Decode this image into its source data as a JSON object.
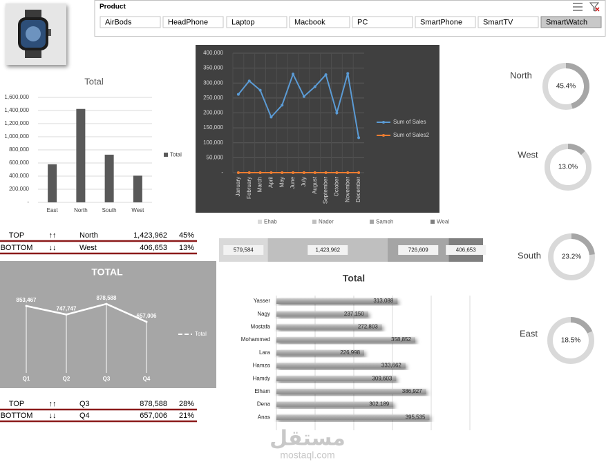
{
  "slicer": {
    "title": "Product",
    "items": [
      {
        "label": "AirBods",
        "selected": false
      },
      {
        "label": "HeadPhone",
        "selected": false
      },
      {
        "label": "Laptop",
        "selected": false
      },
      {
        "label": "Macbook",
        "selected": false
      },
      {
        "label": "PC",
        "selected": false
      },
      {
        "label": "SmartPhone",
        "selected": false
      },
      {
        "label": "SmartTV",
        "selected": false
      },
      {
        "label": "SmartWatch",
        "selected": true
      }
    ]
  },
  "chart_data": [
    {
      "type": "bar",
      "orientation": "vertical",
      "title": "Total",
      "categories": [
        "East",
        "North",
        "South",
        "West"
      ],
      "series": [
        {
          "name": "Total",
          "color": "#595959",
          "values": [
            579584,
            1423962,
            726609,
            406653
          ]
        }
      ],
      "ylim": [
        0,
        1600000
      ],
      "yticks": [
        {
          "value": 0,
          "label": "-"
        },
        {
          "value": 200000,
          "label": "200,000"
        },
        {
          "value": 400000,
          "label": "400,000"
        },
        {
          "value": 600000,
          "label": "600,000"
        },
        {
          "value": 800000,
          "label": "800,000"
        },
        {
          "value": 1000000,
          "label": "1,000,000"
        },
        {
          "value": 1200000,
          "label": "1,200,000"
        },
        {
          "value": 1400000,
          "label": "1,400,000"
        },
        {
          "value": 1600000,
          "label": "1,600,000"
        }
      ],
      "grid": true,
      "legend": "right"
    },
    {
      "type": "line",
      "categories": [
        "January",
        "February",
        "March",
        "April",
        "May",
        "June",
        "July",
        "August",
        "September",
        "October",
        "November",
        "December"
      ],
      "series": [
        {
          "name": "Sum of Sales",
          "color": "#5b9bd5",
          "values": [
            262000,
            307000,
            276000,
            186000,
            226000,
            330000,
            255000,
            288000,
            328000,
            200000,
            332000,
            117000
          ]
        },
        {
          "name": "Sum of Sales2",
          "color": "#ed7d31",
          "values": [
            0,
            0,
            0,
            0,
            0,
            0,
            0,
            0,
            0,
            0,
            0,
            0
          ]
        }
      ],
      "ylim": [
        0,
        400000
      ],
      "yticks": [
        {
          "value": 0,
          "label": "-"
        },
        {
          "value": 50000,
          "label": "50,000"
        },
        {
          "value": 100000,
          "label": "100,000"
        },
        {
          "value": 150000,
          "label": "150,000"
        },
        {
          "value": 200000,
          "label": "200,000"
        },
        {
          "value": 250000,
          "label": "250,000"
        },
        {
          "value": 300000,
          "label": "300,000"
        },
        {
          "value": 350000,
          "label": "350,000"
        },
        {
          "value": 400000,
          "label": "400,000"
        }
      ],
      "grid": true,
      "legend": "right"
    },
    {
      "type": "doughnut",
      "title": "North",
      "values": [
        45.4
      ],
      "value_labels": [
        "45.4%"
      ],
      "color": "#a6a6a6"
    },
    {
      "type": "doughnut",
      "title": "West",
      "values": [
        13.0
      ],
      "value_labels": [
        "13.0%"
      ],
      "color": "#a6a6a6"
    },
    {
      "type": "doughnut",
      "title": "South",
      "values": [
        23.2
      ],
      "value_labels": [
        "23.2%"
      ],
      "color": "#a6a6a6"
    },
    {
      "type": "doughnut",
      "title": "East",
      "values": [
        18.5
      ],
      "value_labels": [
        "18.5%"
      ],
      "color": "#a6a6a6"
    },
    {
      "type": "stacked_bar",
      "orientation": "horizontal",
      "legend": "top",
      "series": [
        {
          "name": "Ehab",
          "color": "#d9d9d9",
          "values": [
            579584
          ],
          "value_labels": [
            "579,584"
          ]
        },
        {
          "name": "Nader",
          "color": "#bfbfbf",
          "values": [
            1423962
          ],
          "value_labels": [
            "1,423,962"
          ]
        },
        {
          "name": "Sameh",
          "color": "#a5a5a5",
          "values": [
            726609
          ],
          "value_labels": [
            "726,609"
          ]
        },
        {
          "name": "Weal",
          "color": "#7f7f7f",
          "values": [
            406653
          ],
          "value_labels": [
            "406,653"
          ]
        }
      ]
    },
    {
      "type": "line",
      "title": "TOTAL",
      "categories": [
        "Q1",
        "Q2",
        "Q3",
        "Q4"
      ],
      "series": [
        {
          "name": "Total",
          "color": "#ffffff",
          "values": [
            853467,
            747747,
            878588,
            657006
          ],
          "value_labels": [
            "853,467",
            "747,747",
            "878,588",
            "657,006"
          ]
        }
      ],
      "ylim": [
        0,
        1400000
      ],
      "legend": "right"
    },
    {
      "type": "bar",
      "orientation": "horizontal",
      "title": "Total",
      "categories": [
        "Yasser",
        "Nagy",
        "Mostafa",
        "Mohammed",
        "Lara",
        "Hamza",
        "Hamdy",
        "Elham",
        "Dena",
        "Anas"
      ],
      "values": [
        313088,
        237150,
        272803,
        358852,
        226998,
        333662,
        309603,
        386927,
        302189,
        395535
      ],
      "value_labels": [
        "313,088",
        "237,150",
        "272,803",
        "358,852",
        "226,998",
        "333,662",
        "309,603",
        "386,927",
        "302,189",
        "395,535"
      ],
      "color": "#a6a6a6",
      "xlim": [
        0,
        500000
      ],
      "xticks": [
        0,
        100000,
        200000,
        300000,
        400000,
        500000
      ],
      "grid": true
    }
  ],
  "tables": [
    {
      "rows": [
        [
          "TOP",
          "↑↑",
          "North",
          "1,423,962",
          "45%"
        ],
        [
          "BOTTOM",
          "↓↓",
          "West",
          "406,653",
          "13%"
        ]
      ]
    },
    {
      "rows": [
        [
          "TOP",
          "↑↑",
          "Q3",
          "878,588",
          "28%"
        ],
        [
          "BOTTOM",
          "↓↓",
          "Q4",
          "657,006",
          "21%"
        ]
      ]
    }
  ],
  "watermark": {
    "arabic": "مستقل",
    "latin": "mostaql.com"
  }
}
